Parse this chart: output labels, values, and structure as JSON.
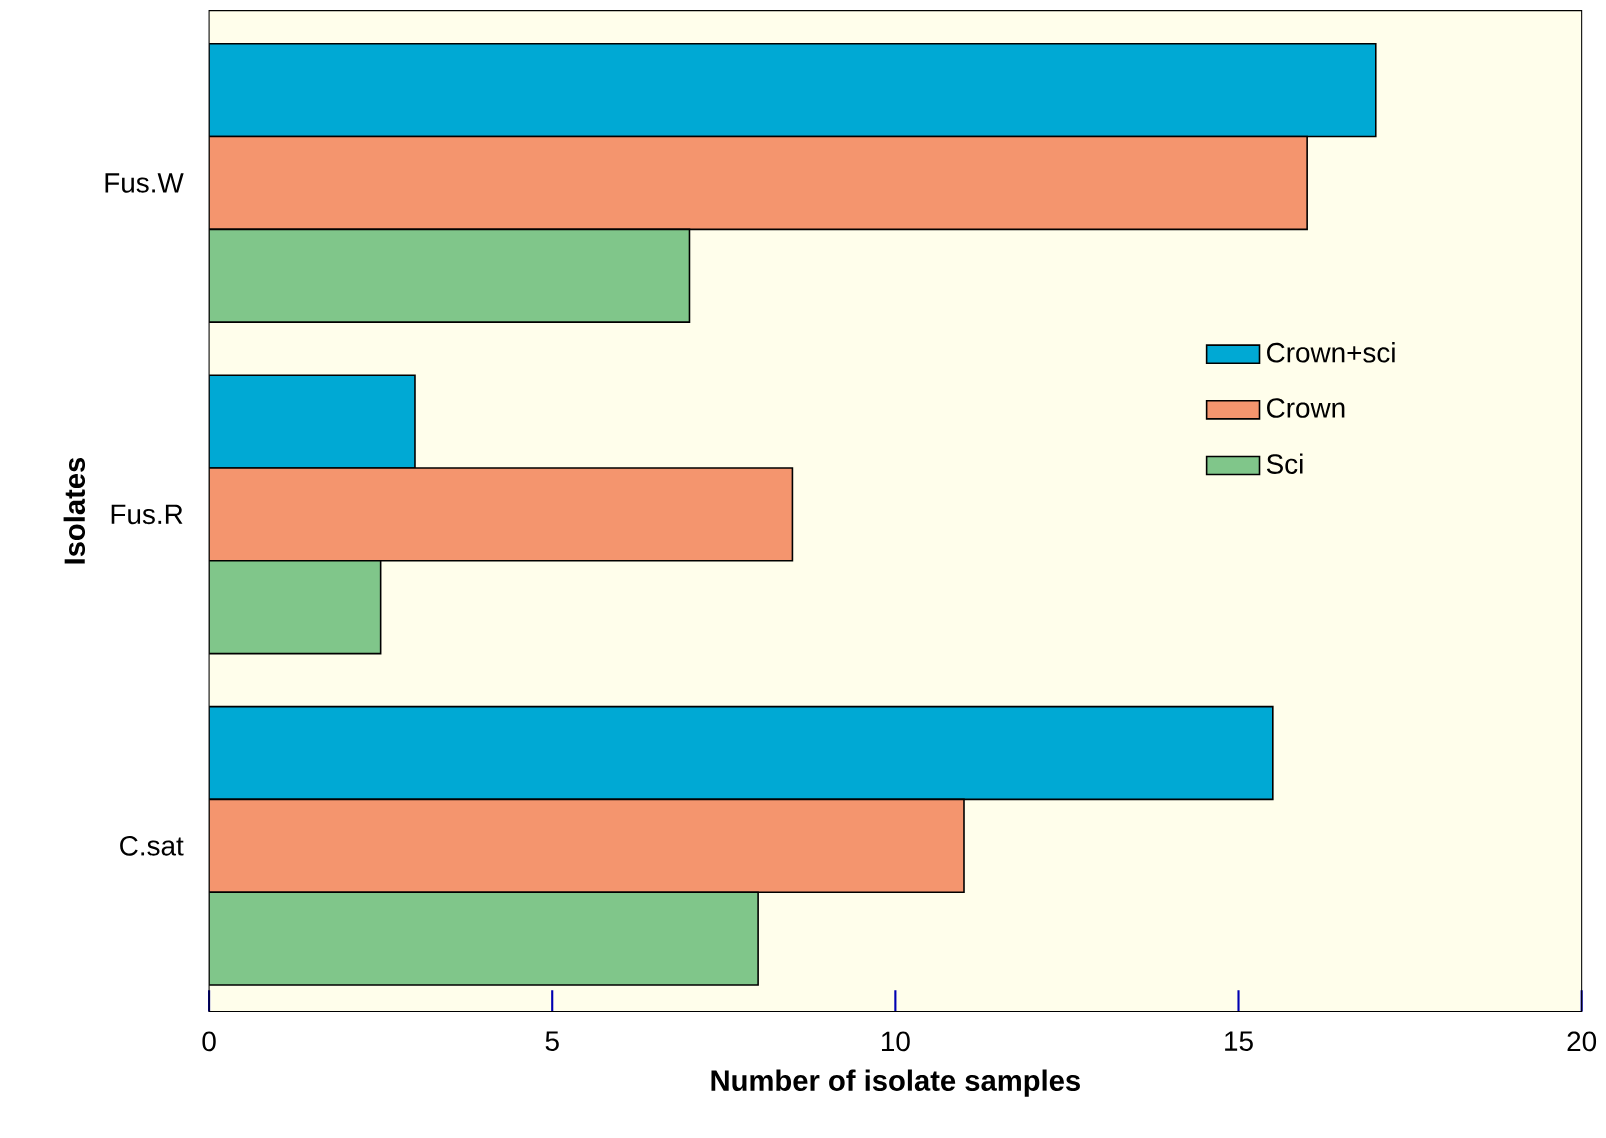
{
  "chart_data": {
    "type": "bar",
    "orientation": "horizontal",
    "xlabel": "Number of isolate samples",
    "ylabel": "Isolates",
    "categories": [
      "Fus.W",
      "Fus.R",
      "C.sat"
    ],
    "series": [
      {
        "name": "Crown+sci",
        "color": "#00a9d4",
        "values": [
          17,
          3,
          15.5
        ]
      },
      {
        "name": "Crown",
        "color": "#f4956e",
        "values": [
          16,
          8.5,
          11
        ]
      },
      {
        "name": "Sci",
        "color": "#80c68a",
        "values": [
          7,
          2.5,
          8
        ]
      }
    ],
    "xlim": [
      0,
      20
    ],
    "xticks": [
      0,
      5,
      10,
      15,
      20
    ],
    "grid": false,
    "legend": "right"
  }
}
